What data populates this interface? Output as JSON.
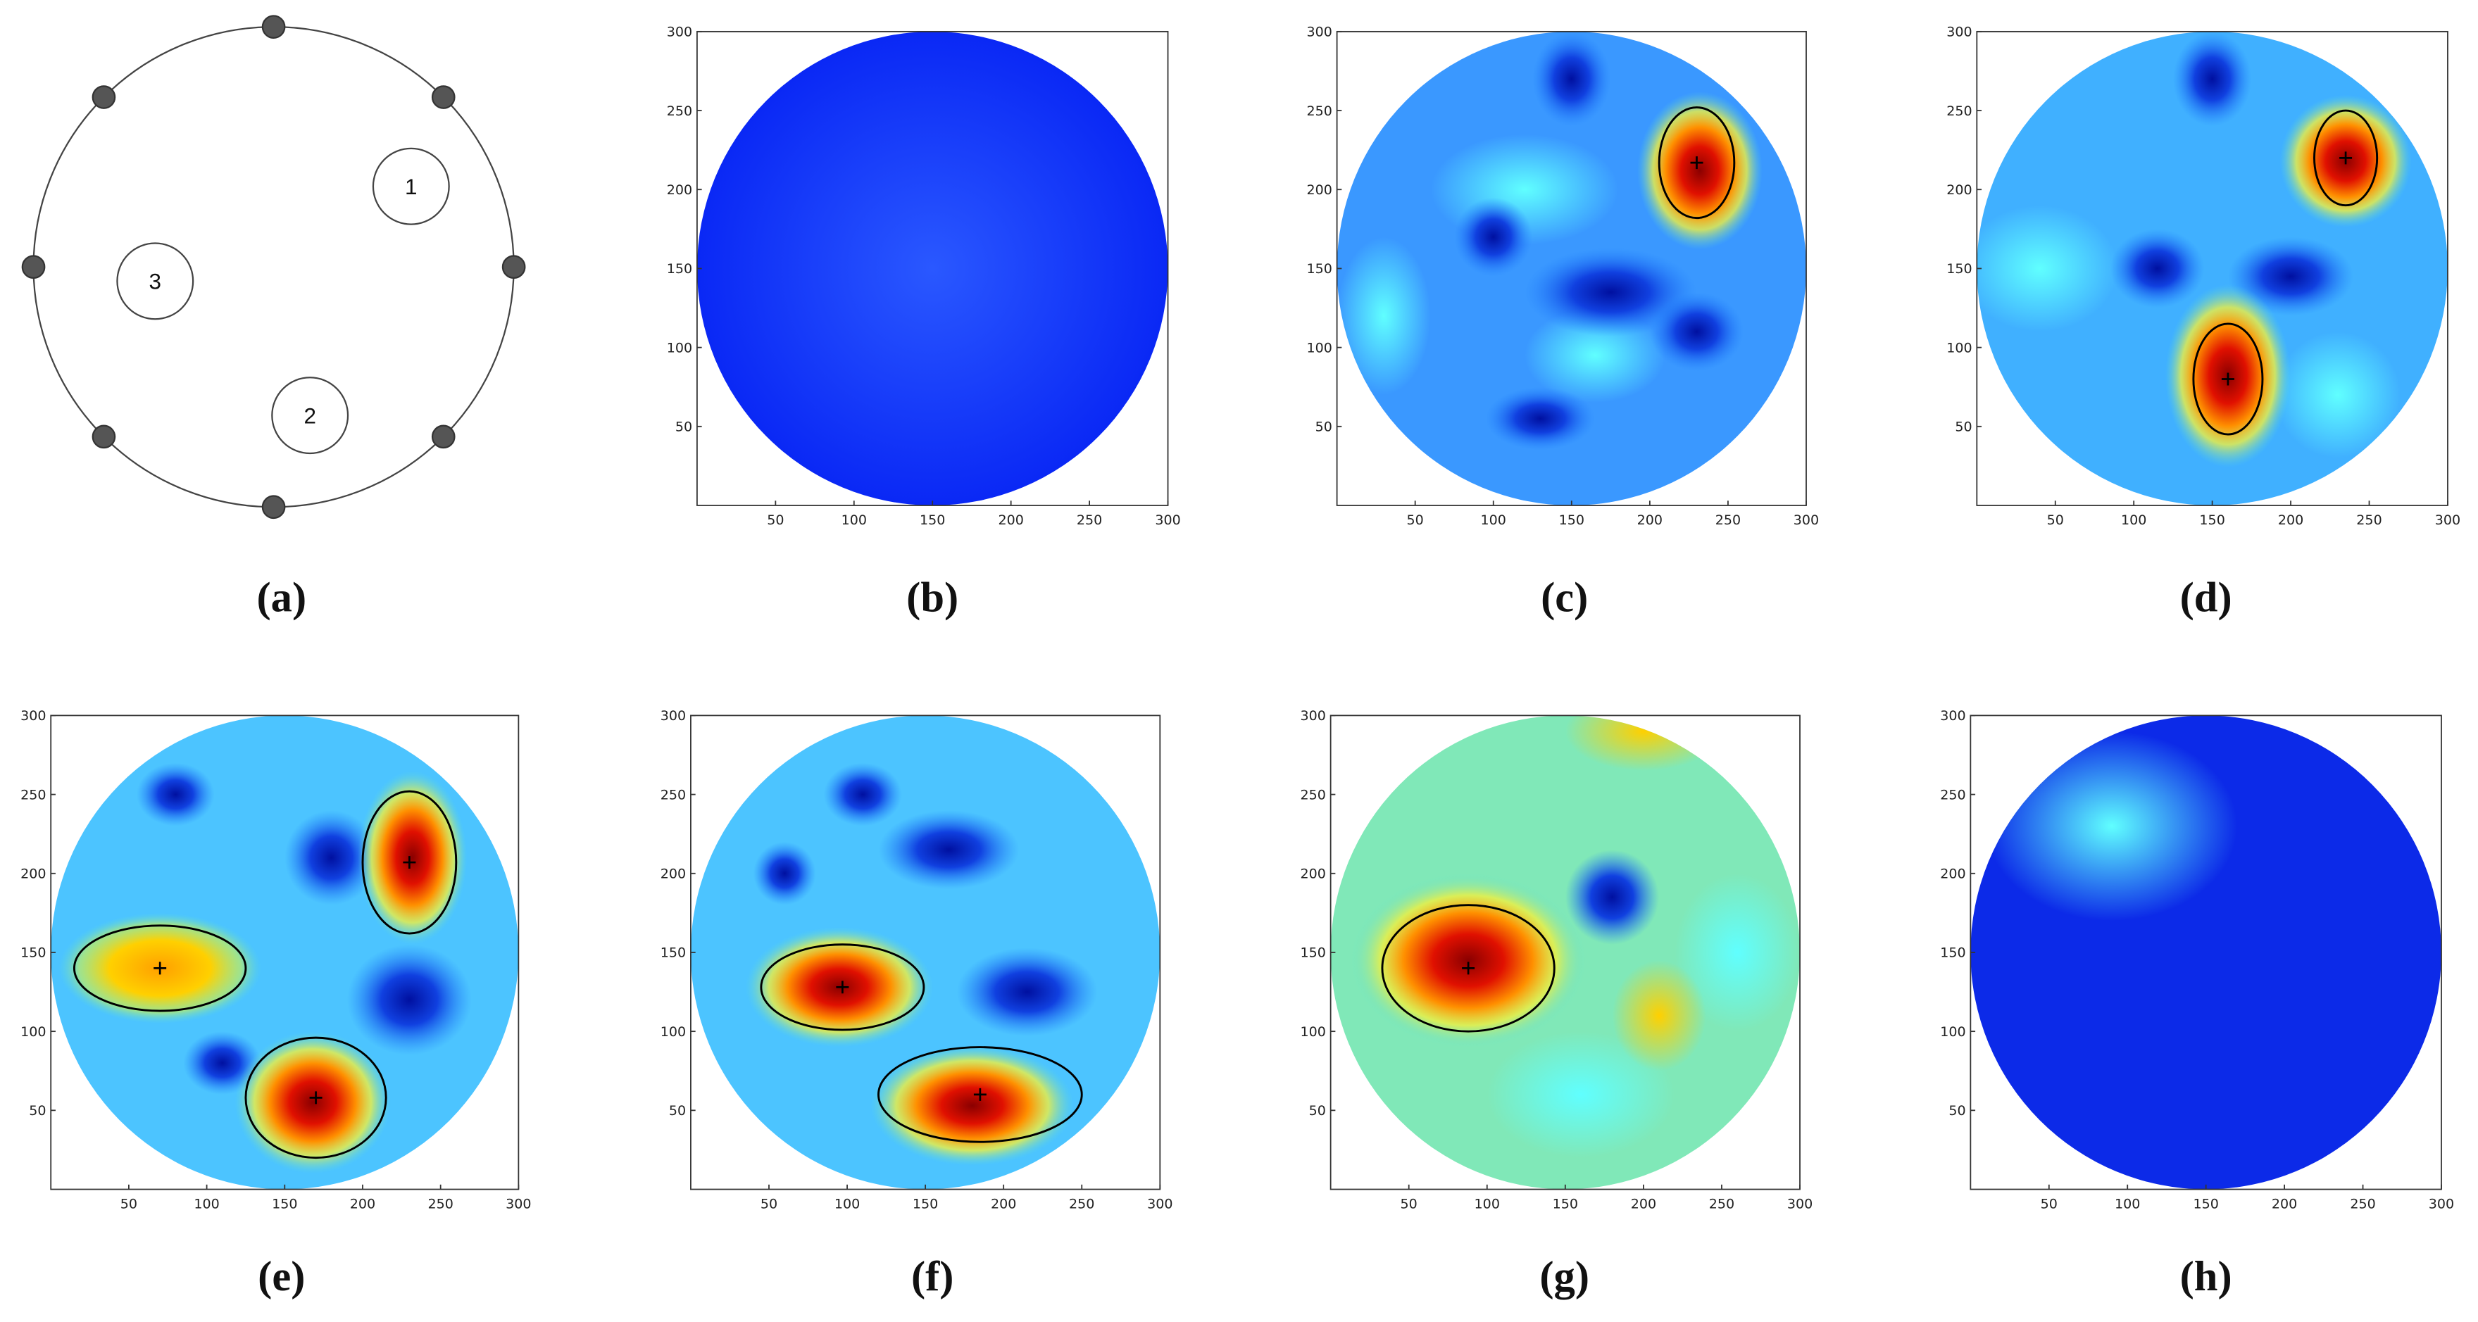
{
  "panels": [
    {
      "caption": "(a)"
    },
    {
      "caption": "(b)"
    },
    {
      "caption": "(c)"
    },
    {
      "caption": "(d)"
    },
    {
      "caption": "(e)"
    },
    {
      "caption": "(f)"
    },
    {
      "caption": "(g)"
    },
    {
      "caption": "(h)"
    }
  ],
  "diagram": {
    "inclusions": [
      "1",
      "2",
      "3"
    ]
  },
  "axes": {
    "xlim": [
      0,
      300
    ],
    "ylim": [
      0,
      300
    ],
    "xticks": [
      50,
      100,
      150,
      200,
      250,
      300
    ],
    "yticks": [
      50,
      100,
      150,
      200,
      250,
      300
    ]
  }
}
